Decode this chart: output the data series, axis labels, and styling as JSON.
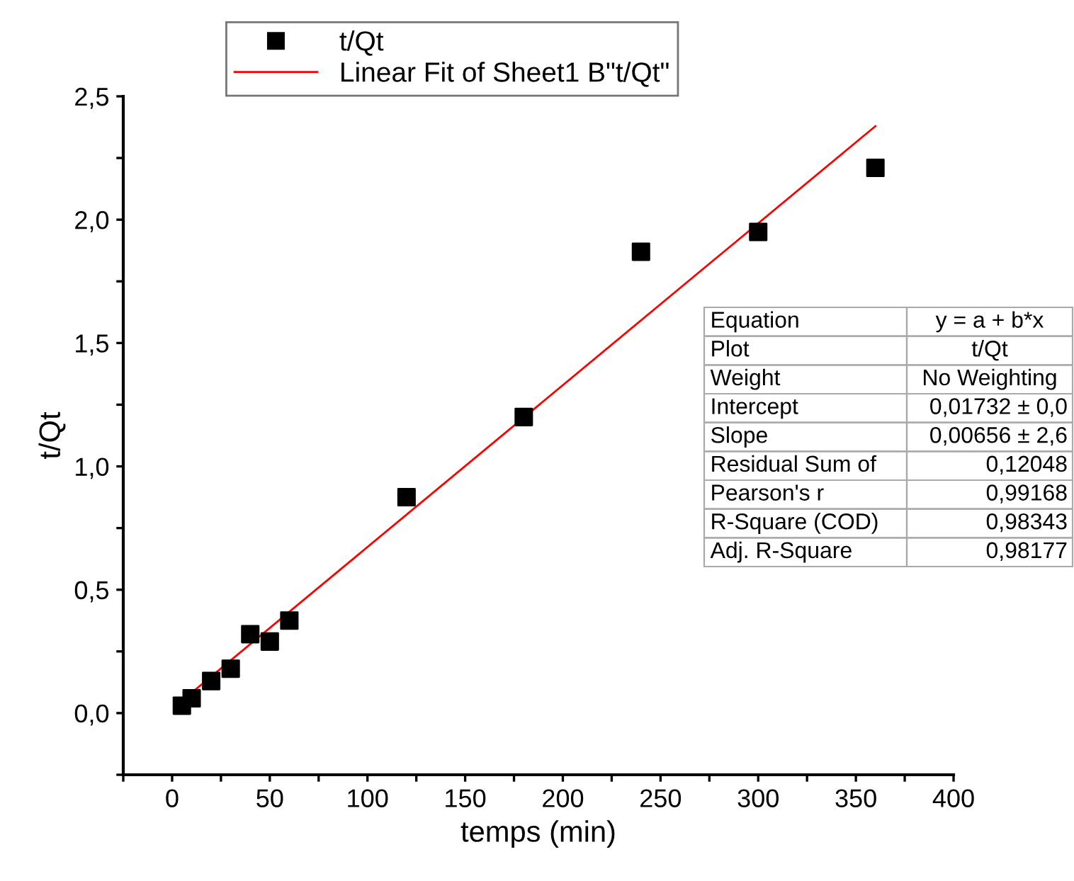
{
  "chart_data": {
    "type": "scatter",
    "xlabel": "temps (min)",
    "ylabel": "t/Qt",
    "x": [
      5,
      10,
      20,
      30,
      40,
      50,
      60,
      120,
      180,
      240,
      300,
      360
    ],
    "series": [
      {
        "name": "t/Qt",
        "color": "#000000",
        "marker": "square",
        "values": [
          0.03,
          0.06,
          0.13,
          0.18,
          0.32,
          0.29,
          0.375,
          0.875,
          1.2,
          1.87,
          1.95,
          2.21
        ]
      },
      {
        "name": "Linear Fit of Sheet1 B\"t/Qt\"",
        "color": "#ff0000",
        "type": "line",
        "line_style": "solid",
        "x": [
          5,
          360
        ],
        "values": [
          0.05,
          2.379
        ]
      }
    ],
    "xlim": [
      -25,
      400
    ],
    "ylim": [
      -0.25,
      2.5
    ],
    "xticks": [
      {
        "value": -25,
        "label": null
      },
      0,
      {
        "value": 25,
        "label": null
      },
      50,
      {
        "value": 75,
        "label": null
      },
      100,
      {
        "value": 125,
        "label": null
      },
      150,
      {
        "value": 175,
        "label": null
      },
      200,
      {
        "value": 225,
        "label": null
      },
      250,
      {
        "value": 275,
        "label": null
      },
      300,
      {
        "value": 325,
        "label": null
      },
      350,
      {
        "value": 375,
        "label": null
      },
      400
    ],
    "yticks": [
      {
        "value": -0.25,
        "label": null
      },
      {
        "value": 0,
        "label": "0,0"
      },
      {
        "value": 0.25,
        "label": null
      },
      {
        "value": 0.5,
        "label": "0,5"
      },
      {
        "value": 0.75,
        "label": null
      },
      {
        "value": 1,
        "label": "1,0"
      },
      {
        "value": 1.25,
        "label": null
      },
      {
        "value": 1.5,
        "label": "1,5"
      },
      {
        "value": 1.75,
        "label": null
      },
      {
        "value": 2,
        "label": "2,0"
      },
      {
        "value": 2.25,
        "label": null
      },
      {
        "value": 2.5,
        "label": "2,5"
      }
    ],
    "grid": false,
    "legend": "top",
    "annotations": [
      "Equation",
      "y = a + b*x",
      "Plot",
      "t/Qt",
      "Weight",
      "No Weighting",
      "Intercept",
      "0,01732 ± 0,0",
      "Slope",
      "0,00656 ± 2,6",
      "Residual Sum of",
      "0,12048",
      "Pearson's r",
      "0,99168",
      "R-Square (COD)",
      "0,98343",
      "Adj. R-Square",
      "0,98177"
    ]
  }
}
